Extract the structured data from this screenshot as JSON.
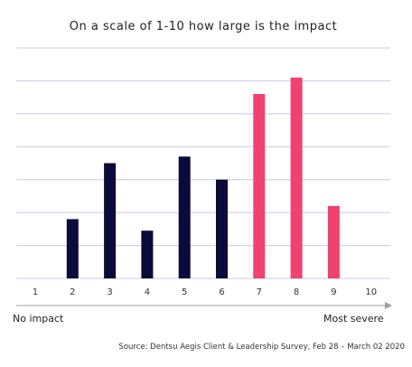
{
  "chart_data": {
    "type": "bar",
    "title": "On a scale of 1-10 how large is the impact",
    "xlabel": "",
    "ylabel": "",
    "categories": [
      "1",
      "2",
      "3",
      "4",
      "5",
      "6",
      "7",
      "8",
      "9",
      "10"
    ],
    "values": [
      0,
      3.6,
      7,
      2.9,
      7.4,
      6,
      11.2,
      12.2,
      4.4,
      0
    ],
    "ylim": [
      0,
      14
    ],
    "grid": true,
    "legend": "none",
    "annotations": {
      "low_end": "No impact",
      "high_end": "Most severe"
    },
    "colors": {
      "low_bars": "#0a0a3b",
      "high_bars": "#f0426f",
      "grid": "#c8c8ec",
      "arrow": "#a0a0a0"
    },
    "highlight_from": "7"
  },
  "source": "Source: Dentsu Aegis Client & Leadership Survey, Feb 28 – March 02 2020"
}
